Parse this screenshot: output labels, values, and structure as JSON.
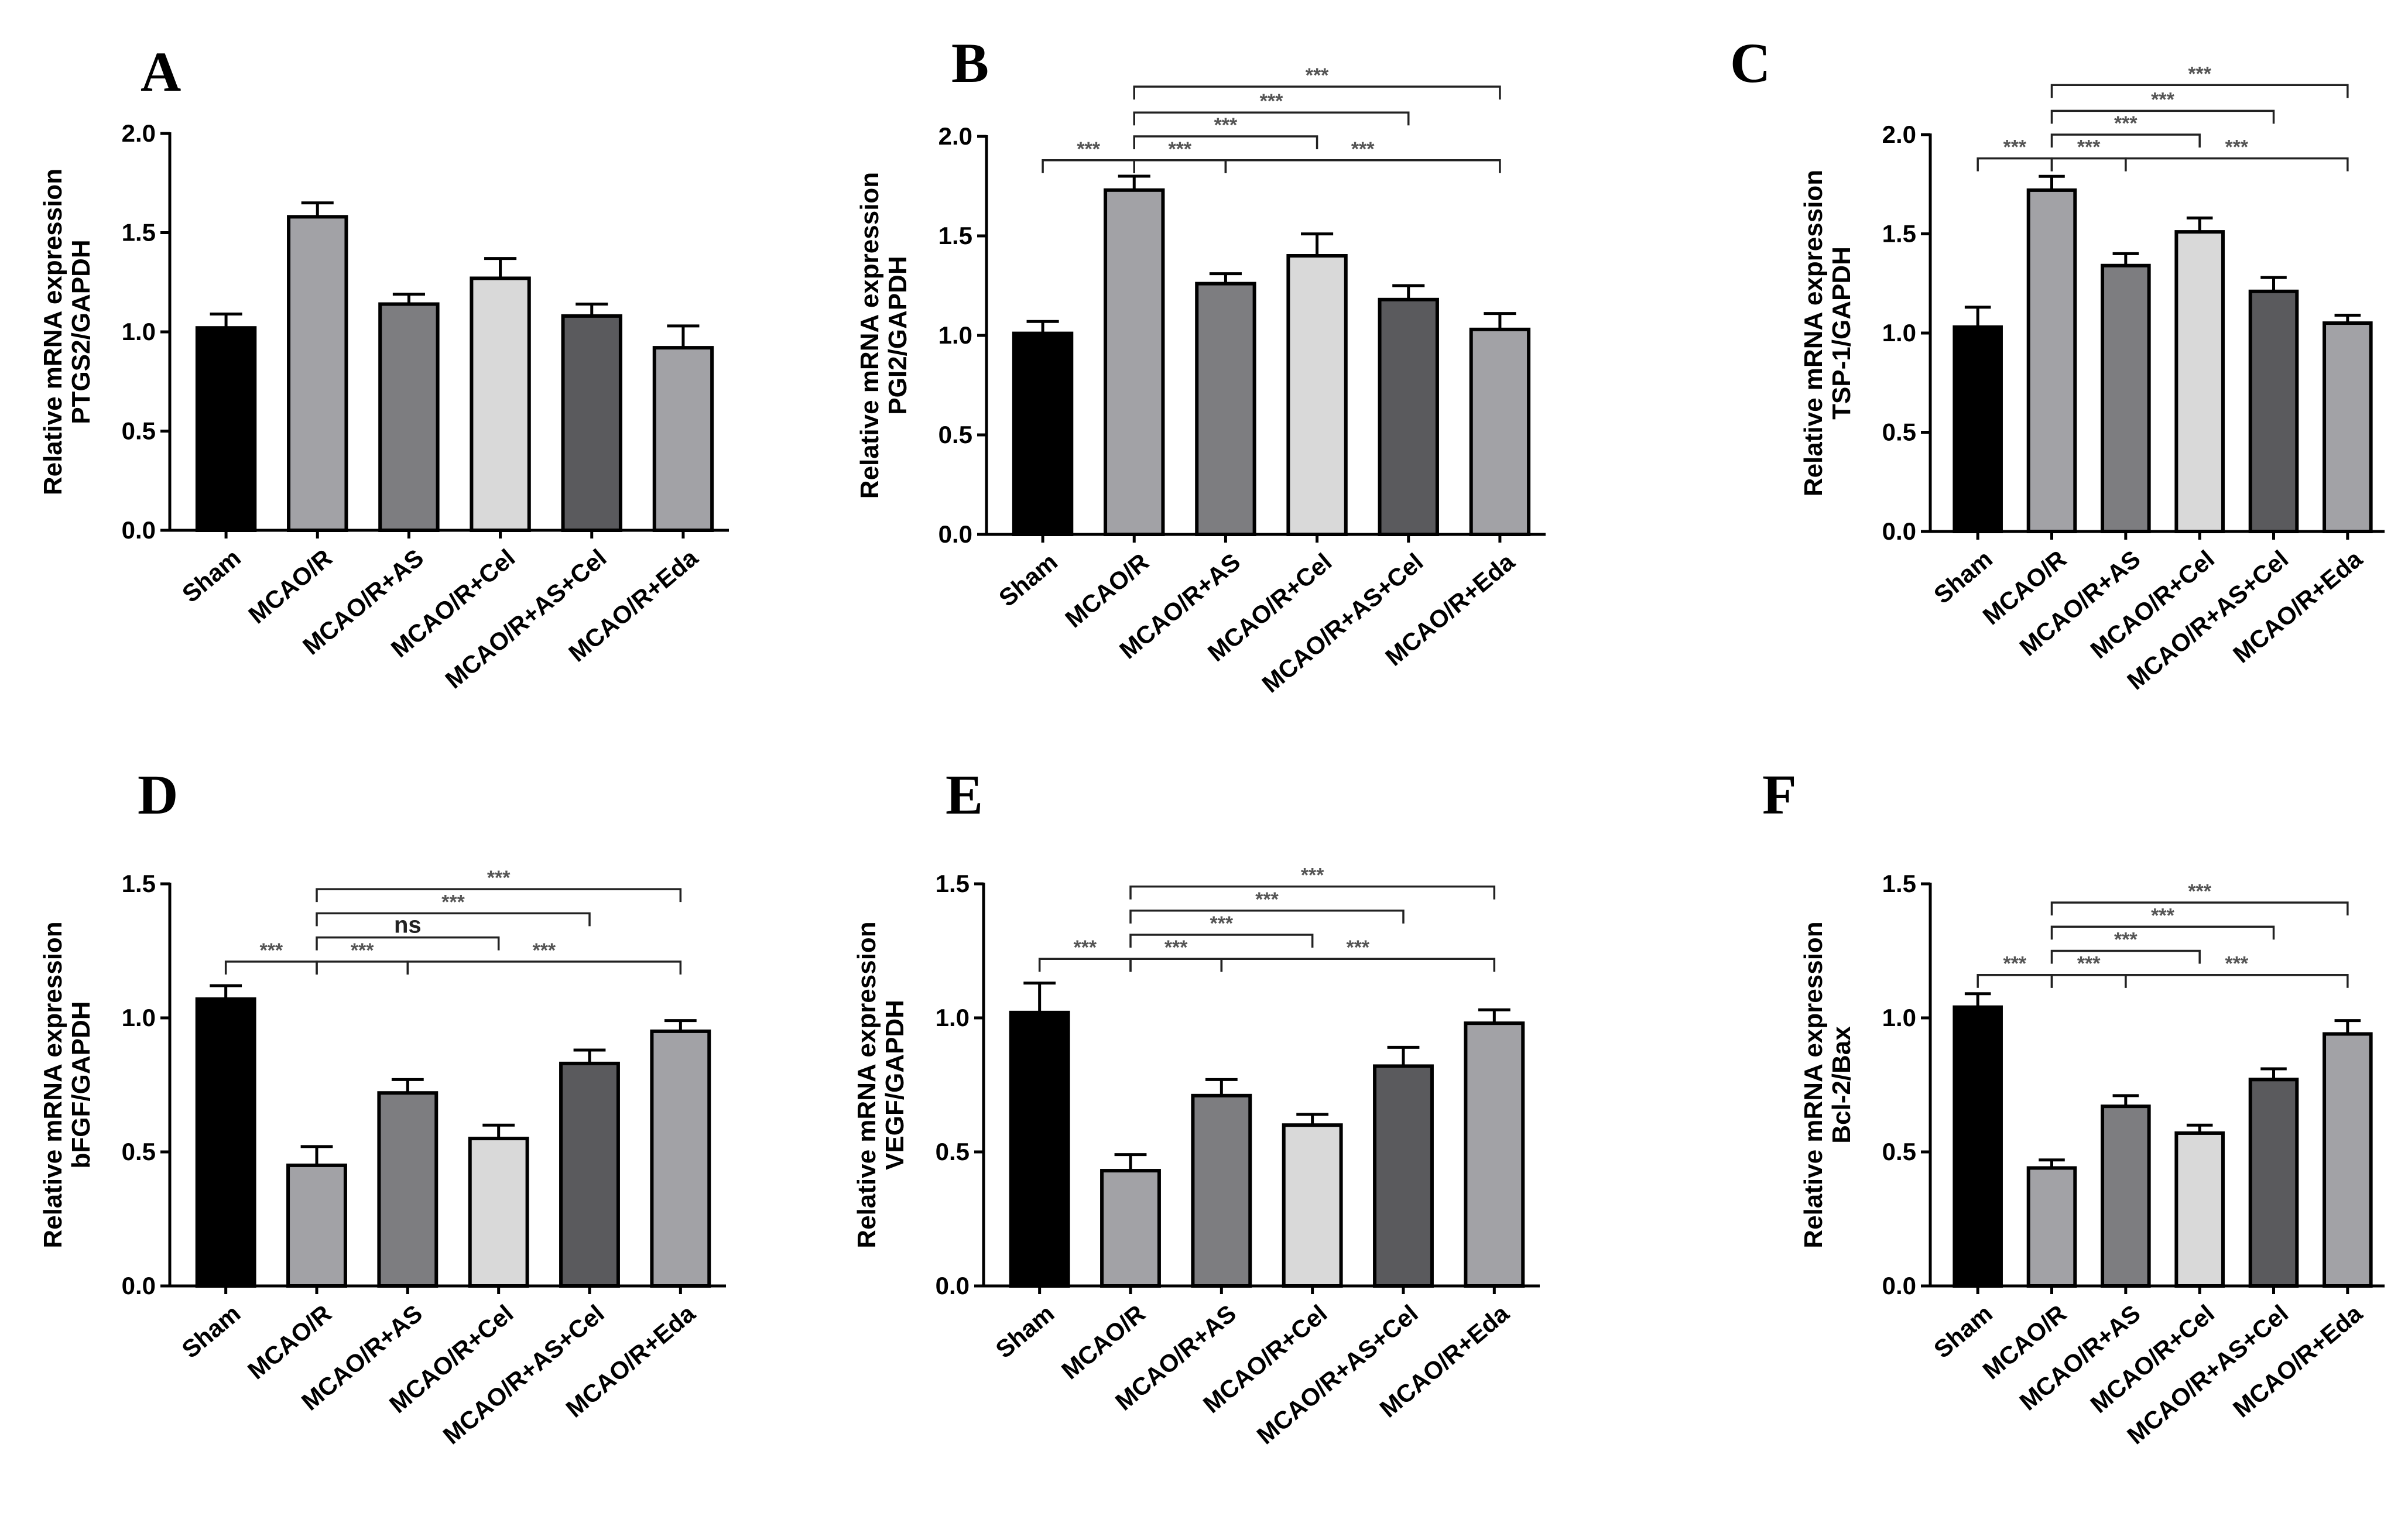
{
  "chart_data": [
    {
      "panel": "A",
      "type": "bar",
      "ylabel": [
        "Relative mRNA expression",
        "PTGS2/GAPDH"
      ],
      "ylim": [
        0,
        2.0
      ],
      "yticks": [
        0.0,
        0.5,
        1.0,
        1.5,
        2.0
      ],
      "ytick_labels": [
        "0.0",
        "0.5",
        "1.0",
        "1.5",
        "2.0"
      ],
      "categories": [
        "Sham",
        "MCAO/R",
        "MCAO/R+AS",
        "MCAO/R+Cel",
        "MCAO/R+AS+Cel",
        "MCAO/R+Eda"
      ],
      "values": [
        1.02,
        1.58,
        1.14,
        1.27,
        1.08,
        0.92
      ],
      "errors": [
        0.07,
        0.07,
        0.05,
        0.1,
        0.06,
        0.11
      ],
      "significance": []
    },
    {
      "panel": "B",
      "type": "bar",
      "ylabel": [
        "Relative mRNA expression",
        "PGI2/GAPDH"
      ],
      "ylim": [
        0,
        2.0
      ],
      "yticks": [
        0.0,
        0.5,
        1.0,
        1.5,
        2.0
      ],
      "ytick_labels": [
        "0.0",
        "0.5",
        "1.0",
        "1.5",
        "2.0"
      ],
      "categories": [
        "Sham",
        "MCAO/R",
        "MCAO/R+AS",
        "MCAO/R+Cel",
        "MCAO/R+AS+Cel",
        "MCAO/R+Eda"
      ],
      "values": [
        1.01,
        1.73,
        1.26,
        1.4,
        1.18,
        1.03
      ],
      "errors": [
        0.06,
        0.07,
        0.05,
        0.11,
        0.07,
        0.08
      ],
      "significance": [
        {
          "from": 0,
          "to": 1,
          "y": 1.88,
          "label": "***"
        },
        {
          "from": 1,
          "to": 2,
          "y": 1.88,
          "label": "***"
        },
        {
          "from": 2,
          "to": 5,
          "y": 1.88,
          "label": "***"
        },
        {
          "from": 1,
          "to": 3,
          "y": 2.0,
          "label": "***"
        },
        {
          "from": 1,
          "to": 4,
          "y": 2.12,
          "label": "***"
        },
        {
          "from": 1,
          "to": 5,
          "y": 2.25,
          "label": "***"
        }
      ]
    },
    {
      "panel": "C",
      "type": "bar",
      "ylabel": [
        "Relative mRNA expression",
        "TSP-1/GAPDH"
      ],
      "ylim": [
        0,
        2.0
      ],
      "yticks": [
        0.0,
        0.5,
        1.0,
        1.5,
        2.0
      ],
      "ytick_labels": [
        "0.0",
        "0.5",
        "1.0",
        "1.5",
        "2.0"
      ],
      "categories": [
        "Sham",
        "MCAO/R",
        "MCAO/R+AS",
        "MCAO/R+Cel",
        "MCAO/R+AS+Cel",
        "MCAO/R+Eda"
      ],
      "values": [
        1.03,
        1.72,
        1.34,
        1.51,
        1.21,
        1.05
      ],
      "errors": [
        0.1,
        0.07,
        0.06,
        0.07,
        0.07,
        0.04
      ],
      "significance": [
        {
          "from": 0,
          "to": 1,
          "y": 1.88,
          "label": "***"
        },
        {
          "from": 1,
          "to": 2,
          "y": 1.88,
          "label": "***"
        },
        {
          "from": 2,
          "to": 5,
          "y": 1.88,
          "label": "***"
        },
        {
          "from": 1,
          "to": 3,
          "y": 2.0,
          "label": "***"
        },
        {
          "from": 1,
          "to": 4,
          "y": 2.12,
          "label": "***"
        },
        {
          "from": 1,
          "to": 5,
          "y": 2.25,
          "label": "***"
        }
      ]
    },
    {
      "panel": "D",
      "type": "bar",
      "ylabel": [
        "Relative mRNA expression",
        "bFGF/GAPDH"
      ],
      "ylim": [
        0,
        1.5
      ],
      "yticks": [
        0.0,
        0.5,
        1.0,
        1.5
      ],
      "ytick_labels": [
        "0.0",
        "0.5",
        "1.0",
        "1.5"
      ],
      "categories": [
        "Sham",
        "MCAO/R",
        "MCAO/R+AS",
        "MCAO/R+Cel",
        "MCAO/R+AS+Cel",
        "MCAO/R+Eda"
      ],
      "values": [
        1.07,
        0.45,
        0.72,
        0.55,
        0.83,
        0.95
      ],
      "errors": [
        0.05,
        0.07,
        0.05,
        0.05,
        0.05,
        0.04
      ],
      "significance": [
        {
          "from": 0,
          "to": 1,
          "y": 1.21,
          "label": "***"
        },
        {
          "from": 1,
          "to": 2,
          "y": 1.21,
          "label": "***"
        },
        {
          "from": 2,
          "to": 5,
          "y": 1.21,
          "label": "***"
        },
        {
          "from": 1,
          "to": 3,
          "y": 1.3,
          "label": "ns"
        },
        {
          "from": 1,
          "to": 4,
          "y": 1.39,
          "label": "***"
        },
        {
          "from": 1,
          "to": 5,
          "y": 1.48,
          "label": "***"
        }
      ]
    },
    {
      "panel": "E",
      "type": "bar",
      "ylabel": [
        "Relative mRNA expression",
        "VEGF/GAPDH"
      ],
      "ylim": [
        0,
        1.5
      ],
      "yticks": [
        0.0,
        0.5,
        1.0,
        1.5
      ],
      "ytick_labels": [
        "0.0",
        "0.5",
        "1.0",
        "1.5"
      ],
      "categories": [
        "Sham",
        "MCAO/R",
        "MCAO/R+AS",
        "MCAO/R+Cel",
        "MCAO/R+AS+Cel",
        "MCAO/R+Eda"
      ],
      "values": [
        1.02,
        0.43,
        0.71,
        0.6,
        0.82,
        0.98
      ],
      "errors": [
        0.11,
        0.06,
        0.06,
        0.04,
        0.07,
        0.05
      ],
      "significance": [
        {
          "from": 0,
          "to": 1,
          "y": 1.22,
          "label": "***"
        },
        {
          "from": 1,
          "to": 2,
          "y": 1.22,
          "label": "***"
        },
        {
          "from": 2,
          "to": 5,
          "y": 1.22,
          "label": "***"
        },
        {
          "from": 1,
          "to": 3,
          "y": 1.31,
          "label": "***"
        },
        {
          "from": 1,
          "to": 4,
          "y": 1.4,
          "label": "***"
        },
        {
          "from": 1,
          "to": 5,
          "y": 1.49,
          "label": "***"
        }
      ]
    },
    {
      "panel": "F",
      "type": "bar",
      "ylabel": [
        "Relative mRNA expression",
        "Bcl-2/Bax"
      ],
      "ylim": [
        0,
        1.5
      ],
      "yticks": [
        0.0,
        0.5,
        1.0,
        1.5
      ],
      "ytick_labels": [
        "0.0",
        "0.5",
        "1.0",
        "1.5"
      ],
      "categories": [
        "Sham",
        "MCAO/R",
        "MCAO/R+AS",
        "MCAO/R+Cel",
        "MCAO/R+AS+Cel",
        "MCAO/R+Eda"
      ],
      "values": [
        1.04,
        0.44,
        0.67,
        0.57,
        0.77,
        0.94
      ],
      "errors": [
        0.05,
        0.03,
        0.04,
        0.03,
        0.04,
        0.05
      ],
      "significance": [
        {
          "from": 0,
          "to": 1,
          "y": 1.16,
          "label": "***"
        },
        {
          "from": 1,
          "to": 2,
          "y": 1.16,
          "label": "***"
        },
        {
          "from": 2,
          "to": 5,
          "y": 1.16,
          "label": "***"
        },
        {
          "from": 1,
          "to": 3,
          "y": 1.25,
          "label": "***"
        },
        {
          "from": 1,
          "to": 4,
          "y": 1.34,
          "label": "***"
        },
        {
          "from": 1,
          "to": 5,
          "y": 1.43,
          "label": "***"
        }
      ]
    }
  ],
  "colors": {
    "bars": [
      "#000000",
      "#a2a2a6",
      "#7d7d80",
      "#d9d9d9",
      "#5a5a5d",
      "#a2a2a6"
    ],
    "axis": "#000000",
    "significance_text": "#555555"
  }
}
